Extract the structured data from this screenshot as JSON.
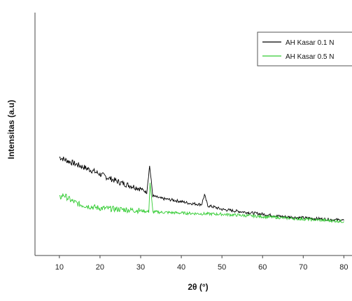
{
  "chart_data": {
    "type": "line",
    "title": "",
    "xlabel": "2θ (°)",
    "ylabel": "Intensitas (a.u)",
    "xlim": [
      4,
      82
    ],
    "ylim": [
      0,
      1
    ],
    "xticks": [
      10,
      20,
      30,
      40,
      50,
      60,
      70,
      80
    ],
    "xtick_labels": [
      "10",
      "20",
      "30",
      "40",
      "50",
      "60",
      "70",
      "80"
    ],
    "grid": false,
    "legend_position": "top-right",
    "series": [
      {
        "name": "AH Kasar 0.1 N",
        "color": "#000000",
        "x": [
          10,
          12,
          15,
          18,
          20,
          22,
          25,
          28,
          30,
          31.5,
          32.2,
          33,
          35,
          38,
          40,
          42,
          45,
          45.7,
          46.5,
          48,
          50,
          55,
          60,
          65,
          70,
          75,
          80
        ],
        "values": [
          0.405,
          0.39,
          0.37,
          0.35,
          0.335,
          0.32,
          0.3,
          0.285,
          0.275,
          0.26,
          0.37,
          0.245,
          0.235,
          0.228,
          0.222,
          0.215,
          0.21,
          0.25,
          0.205,
          0.2,
          0.19,
          0.18,
          0.17,
          0.16,
          0.155,
          0.15,
          0.145
        ]
      },
      {
        "name": "AH Kasar 0.5 N",
        "color": "#33cc33",
        "x": [
          10,
          11,
          13,
          15,
          18,
          20,
          25,
          30,
          32,
          32.3,
          33,
          35,
          40,
          45,
          50,
          55,
          60,
          65,
          70,
          75,
          80
        ],
        "values": [
          0.235,
          0.25,
          0.225,
          0.21,
          0.2,
          0.195,
          0.19,
          0.185,
          0.18,
          0.3,
          0.18,
          0.178,
          0.175,
          0.172,
          0.17,
          0.165,
          0.16,
          0.155,
          0.15,
          0.145,
          0.14
        ]
      }
    ]
  }
}
